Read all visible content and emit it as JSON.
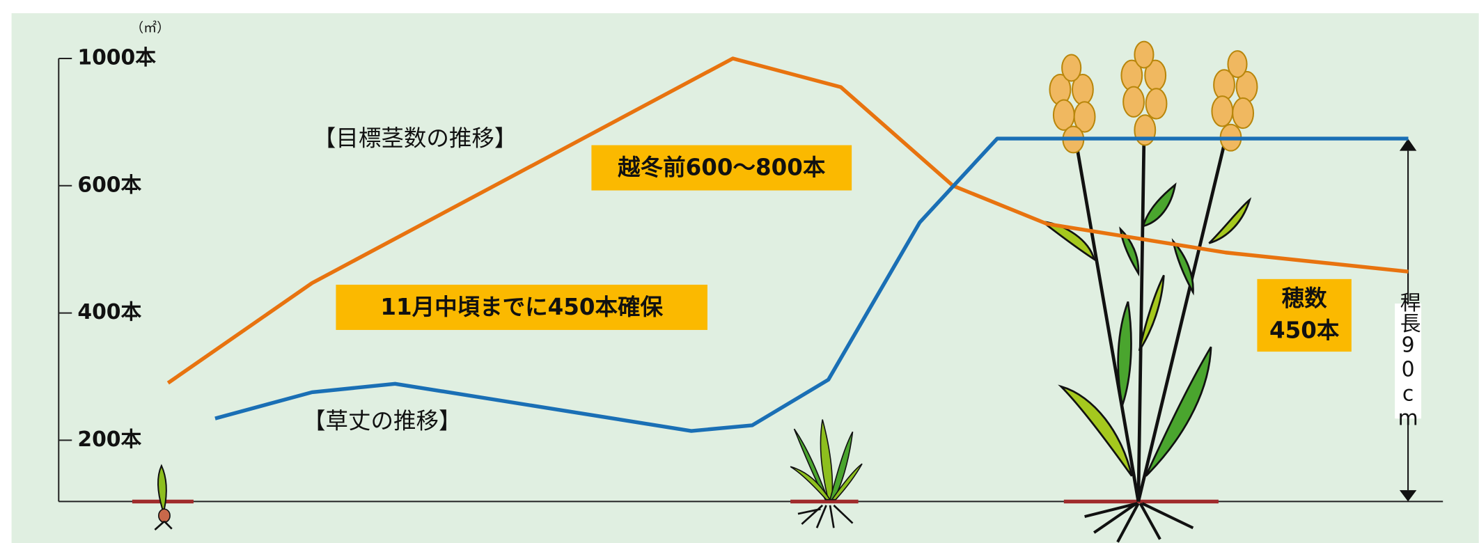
{
  "chart_data": {
    "type": "line",
    "unit": "（㎡）",
    "xlim": [
      0,
      100
    ],
    "ylim": [
      0,
      1000
    ],
    "yticks": [
      {
        "value": 200,
        "label": "200本"
      },
      {
        "value": 400,
        "label": "400本"
      },
      {
        "value": 600,
        "label": "600本"
      },
      {
        "value": 1000,
        "label": "1000本"
      }
    ],
    "y2lim": [
      0,
      90
    ],
    "series": [
      {
        "name": "【目標茎数の推移】",
        "color": "#e8730f",
        "x": [
          7.9,
          18.3,
          48.7,
          56.5,
          64.6,
          71.4,
          84.3,
          97.5
        ],
        "values": [
          290,
          447,
          1000,
          910,
          600,
          540,
          495,
          465
        ]
      },
      {
        "name": "【草丈の推移】",
        "color": "#1a6fb5",
        "axis": "y2",
        "x": [
          11.3,
          18.3,
          24.3,
          45.7,
          50.1,
          55.6,
          62.2,
          67.8,
          97.5
        ],
        "values": [
          20.6,
          27.1,
          29.2,
          17.5,
          18.9,
          30.2,
          69.2,
          90,
          90
        ]
      }
    ],
    "annotations": [
      "越冬前600～800本",
      "11月中頃までに450本確保",
      "穂数",
      "450本",
      "稈長90cm"
    ]
  }
}
